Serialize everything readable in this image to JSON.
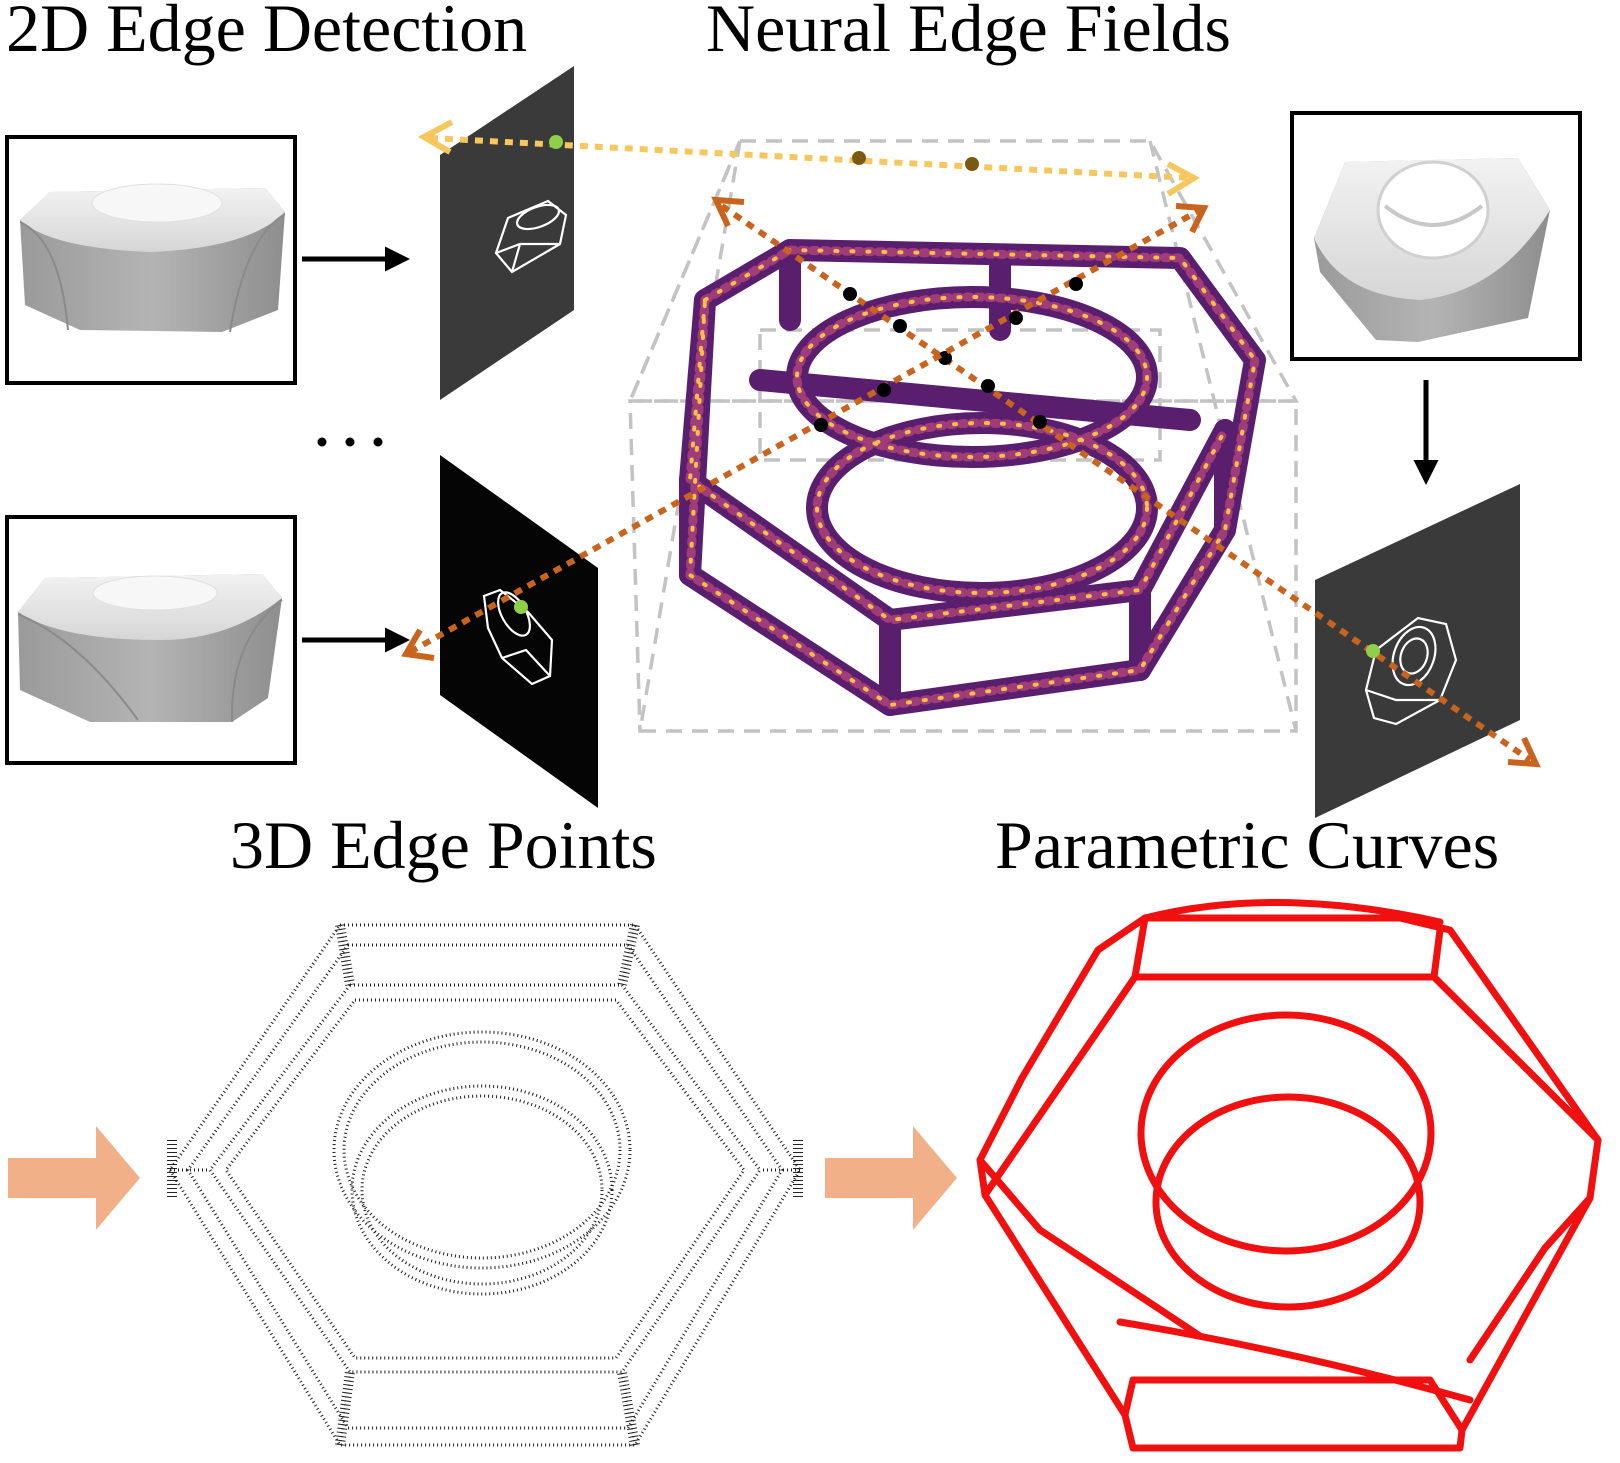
{
  "labels": {
    "edge_detection": "2D Edge Detection",
    "neural_edge_fields": "Neural Edge Fields",
    "edge_points": "3D Edge Points",
    "parametric_curves": "Parametric Curves",
    "ellipsis": "..."
  },
  "colors": {
    "ray_yellow": "#f5c75f",
    "ray_orange": "#c8641e",
    "pixel_green": "#8ed04a",
    "field_purple": "#5a1e6e",
    "field_magenta": "#a03c78",
    "field_yellow": "#f3c04a",
    "curve_red": "#f01010",
    "flow_arrow": "#f1b088",
    "panel_dark": "#3a3a3a",
    "panel_black": "#050505",
    "bbox_gray": "#c3c3c3"
  },
  "icons": {
    "input_views": "hex-nut-render-icon",
    "edge_maps": "edge-map-panel-icon",
    "flow": "right-arrow-icon"
  }
}
